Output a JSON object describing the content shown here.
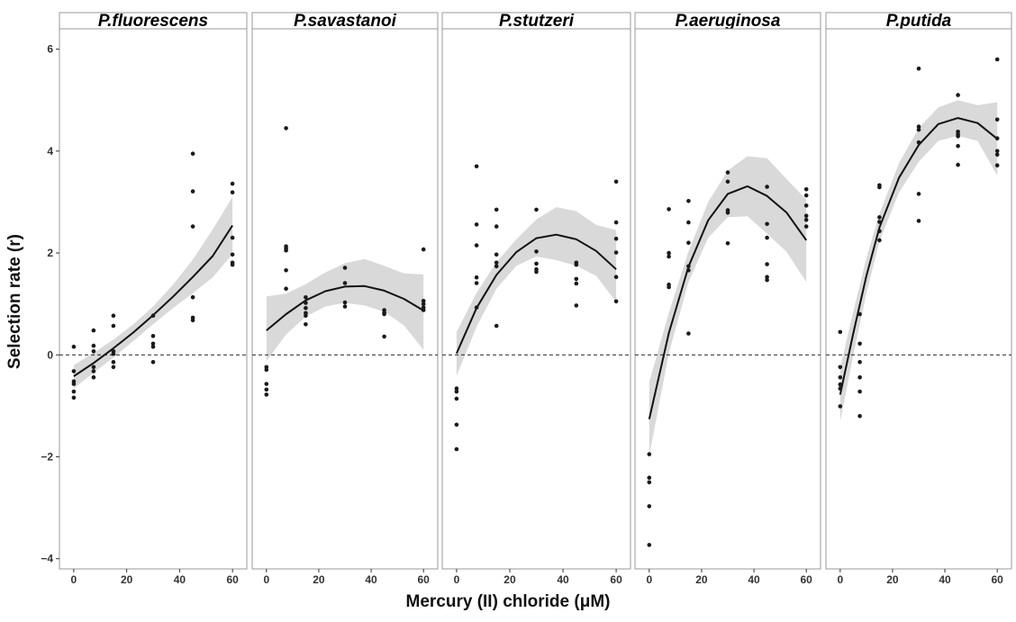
{
  "figure": {
    "ylabel": "Selection rate (r)",
    "xlabel": "Mercury (II) chloride (μM)"
  },
  "chart_data": {
    "type": "scatter",
    "layout": "faceted panels, shared y axis",
    "xlim": [
      -2,
      62
    ],
    "ylim": [
      -4.2,
      6.4
    ],
    "x_ticks": [
      0,
      20,
      40,
      60
    ],
    "y_ticks": [
      -4,
      -2,
      0,
      2,
      4,
      6
    ],
    "y_tick_labels": [
      "−4",
      "−2",
      "0",
      "2",
      "4",
      "6"
    ],
    "reference_line": {
      "y": 0,
      "style": "dashed"
    },
    "fit": "quadratic curve with shaded confidence band",
    "colors": {
      "points": "#1a1a1a",
      "fit_line": "#111111",
      "band": "#d9d9d9",
      "strip": "#ffffff",
      "border": "#9a9a9a"
    },
    "panels": [
      {
        "title": "P.fluorescens",
        "points": [
          [
            0,
            0.16
          ],
          [
            0,
            -0.32
          ],
          [
            0,
            -0.52
          ],
          [
            0,
            -0.57
          ],
          [
            0,
            -0.72
          ],
          [
            0,
            -0.84
          ],
          [
            7.5,
            0.48
          ],
          [
            7.5,
            0.18
          ],
          [
            7.5,
            0.07
          ],
          [
            7.5,
            -0.24
          ],
          [
            7.5,
            -0.32
          ],
          [
            7.5,
            -0.44
          ],
          [
            15,
            0.77
          ],
          [
            15,
            0.57
          ],
          [
            15,
            0.07
          ],
          [
            15,
            0.02
          ],
          [
            15,
            -0.14
          ],
          [
            15,
            -0.24
          ],
          [
            30,
            0.77
          ],
          [
            30,
            0.37
          ],
          [
            30,
            0.22
          ],
          [
            30,
            0.16
          ],
          [
            30,
            -0.14
          ],
          [
            45,
            3.95
          ],
          [
            45,
            3.21
          ],
          [
            45,
            2.52
          ],
          [
            45,
            1.13
          ],
          [
            45,
            0.73
          ],
          [
            45,
            0.68
          ],
          [
            60,
            3.36
          ],
          [
            60,
            3.19
          ],
          [
            60,
            2.3
          ],
          [
            60,
            1.97
          ],
          [
            60,
            1.81
          ],
          [
            60,
            1.77
          ]
        ],
        "fit_x": [
          0,
          7.5,
          15,
          22.5,
          30,
          37.5,
          45,
          52.5,
          60
        ],
        "fit_y": [
          -0.42,
          -0.16,
          0.13,
          0.44,
          0.78,
          1.14,
          1.53,
          1.94,
          2.54
        ],
        "band_upper": [
          -0.2,
          0.04,
          0.3,
          0.6,
          0.95,
          1.38,
          1.87,
          2.46,
          3.1
        ],
        "band_lower": [
          -0.66,
          -0.35,
          -0.05,
          0.27,
          0.6,
          0.92,
          1.21,
          1.52,
          1.98
        ]
      },
      {
        "title": "P.savastanoi",
        "points": [
          [
            0,
            -0.24
          ],
          [
            0,
            -0.29
          ],
          [
            0,
            -0.57
          ],
          [
            0,
            -0.68
          ],
          [
            0,
            -0.78
          ],
          [
            7.5,
            4.45
          ],
          [
            7.5,
            2.13
          ],
          [
            7.5,
            2.09
          ],
          [
            7.5,
            2.05
          ],
          [
            7.5,
            1.66
          ],
          [
            7.5,
            1.3
          ],
          [
            15,
            1.13
          ],
          [
            15,
            1.02
          ],
          [
            15,
            0.92
          ],
          [
            15,
            0.82
          ],
          [
            15,
            0.77
          ],
          [
            15,
            0.6
          ],
          [
            30,
            1.71
          ],
          [
            30,
            1.41
          ],
          [
            30,
            1.03
          ],
          [
            30,
            0.95
          ],
          [
            45,
            0.88
          ],
          [
            45,
            0.83
          ],
          [
            45,
            0.8
          ],
          [
            45,
            0.36
          ],
          [
            60,
            2.07
          ],
          [
            60,
            1.06
          ],
          [
            60,
            1.0
          ],
          [
            60,
            0.93
          ],
          [
            60,
            0.88
          ]
        ],
        "fit_x": [
          0,
          7.5,
          15,
          22.5,
          30,
          37.5,
          45,
          52.5,
          60
        ],
        "fit_y": [
          0.48,
          0.8,
          1.07,
          1.25,
          1.34,
          1.35,
          1.26,
          1.1,
          0.87
        ],
        "band_upper": [
          1.15,
          1.2,
          1.39,
          1.62,
          1.8,
          1.88,
          1.75,
          1.6,
          1.58
        ],
        "band_lower": [
          -0.12,
          0.4,
          0.75,
          0.95,
          1.02,
          0.97,
          0.85,
          0.58,
          0.1
        ]
      },
      {
        "title": "P.stutzeri",
        "points": [
          [
            0,
            -0.66
          ],
          [
            0,
            -0.72
          ],
          [
            0,
            -0.86
          ],
          [
            0,
            -1.37
          ],
          [
            0,
            -1.85
          ],
          [
            7.5,
            3.7
          ],
          [
            7.5,
            2.56
          ],
          [
            7.5,
            2.15
          ],
          [
            7.5,
            1.52
          ],
          [
            7.5,
            1.41
          ],
          [
            7.5,
            0.93
          ],
          [
            15,
            2.85
          ],
          [
            15,
            2.52
          ],
          [
            15,
            1.97
          ],
          [
            15,
            1.81
          ],
          [
            15,
            1.74
          ],
          [
            15,
            0.57
          ],
          [
            30,
            2.85
          ],
          [
            30,
            2.03
          ],
          [
            30,
            1.79
          ],
          [
            30,
            1.68
          ],
          [
            30,
            1.63
          ],
          [
            45,
            1.81
          ],
          [
            45,
            1.77
          ],
          [
            45,
            1.49
          ],
          [
            45,
            1.4
          ],
          [
            45,
            0.97
          ],
          [
            60,
            3.4
          ],
          [
            60,
            2.6
          ],
          [
            60,
            2.28
          ],
          [
            60,
            2.01
          ],
          [
            60,
            1.53
          ],
          [
            60,
            1.05
          ]
        ],
        "fit_x": [
          0,
          7.5,
          15,
          22.5,
          30,
          37.5,
          45,
          52.5,
          60
        ],
        "fit_y": [
          0.03,
          0.92,
          1.57,
          2.02,
          2.29,
          2.36,
          2.27,
          2.04,
          1.68
        ],
        "band_upper": [
          0.45,
          1.22,
          1.82,
          2.27,
          2.66,
          2.9,
          2.82,
          2.55,
          2.45
        ],
        "band_lower": [
          -0.41,
          0.55,
          1.3,
          1.75,
          1.93,
          1.86,
          1.75,
          1.55,
          1.04
        ]
      },
      {
        "title": "P.aeruginosa",
        "points": [
          [
            0,
            -1.95
          ],
          [
            0,
            -2.41
          ],
          [
            0,
            -2.5
          ],
          [
            0,
            -2.97
          ],
          [
            0,
            -3.73
          ],
          [
            7.5,
            2.86
          ],
          [
            7.5,
            2.0
          ],
          [
            7.5,
            1.93
          ],
          [
            7.5,
            1.38
          ],
          [
            7.5,
            1.33
          ],
          [
            15,
            3.02
          ],
          [
            15,
            2.6
          ],
          [
            15,
            2.2
          ],
          [
            15,
            1.74
          ],
          [
            15,
            1.66
          ],
          [
            15,
            0.42
          ],
          [
            30,
            3.58
          ],
          [
            30,
            3.4
          ],
          [
            30,
            2.84
          ],
          [
            30,
            2.79
          ],
          [
            30,
            2.19
          ],
          [
            45,
            3.3
          ],
          [
            45,
            2.57
          ],
          [
            45,
            2.3
          ],
          [
            45,
            1.78
          ],
          [
            45,
            1.53
          ],
          [
            45,
            1.47
          ],
          [
            60,
            3.25
          ],
          [
            60,
            3.13
          ],
          [
            60,
            2.93
          ],
          [
            60,
            2.73
          ],
          [
            60,
            2.65
          ],
          [
            60,
            2.52
          ]
        ],
        "fit_x": [
          0,
          7.5,
          15,
          22.5,
          30,
          37.5,
          45,
          52.5,
          60
        ],
        "fit_y": [
          -1.26,
          0.43,
          1.73,
          2.64,
          3.16,
          3.31,
          3.12,
          2.79,
          2.25
        ],
        "band_upper": [
          -0.54,
          0.83,
          2.03,
          3.0,
          3.62,
          3.9,
          3.86,
          3.45,
          3.05
        ],
        "band_lower": [
          -1.98,
          0.03,
          1.43,
          2.3,
          2.7,
          2.72,
          2.38,
          2.02,
          1.43
        ]
      },
      {
        "title": "P.putida",
        "points": [
          [
            0,
            0.45
          ],
          [
            0,
            -0.24
          ],
          [
            0,
            -0.44
          ],
          [
            0,
            -0.58
          ],
          [
            0,
            -0.66
          ],
          [
            0,
            -1.01
          ],
          [
            7.5,
            0.8
          ],
          [
            7.5,
            0.22
          ],
          [
            7.5,
            -0.14
          ],
          [
            7.5,
            -0.44
          ],
          [
            7.5,
            -0.72
          ],
          [
            7.5,
            -1.2
          ],
          [
            15,
            3.33
          ],
          [
            15,
            3.29
          ],
          [
            15,
            2.7
          ],
          [
            15,
            2.61
          ],
          [
            15,
            2.43
          ],
          [
            15,
            2.25
          ],
          [
            30,
            5.62
          ],
          [
            30,
            4.48
          ],
          [
            30,
            4.42
          ],
          [
            30,
            4.17
          ],
          [
            30,
            3.16
          ],
          [
            30,
            2.63
          ],
          [
            45,
            5.1
          ],
          [
            45,
            4.38
          ],
          [
            45,
            4.33
          ],
          [
            45,
            4.29
          ],
          [
            45,
            4.1
          ],
          [
            45,
            3.73
          ],
          [
            60,
            5.8
          ],
          [
            60,
            4.62
          ],
          [
            60,
            4.25
          ],
          [
            60,
            4.0
          ],
          [
            60,
            3.93
          ],
          [
            60,
            3.72
          ]
        ],
        "fit_x": [
          0,
          5,
          10,
          15,
          22.5,
          30,
          37.5,
          45,
          52.5,
          60
        ],
        "fit_y": [
          -0.78,
          0.42,
          1.55,
          2.5,
          3.48,
          4.12,
          4.53,
          4.65,
          4.55,
          4.24
        ],
        "band_upper": [
          -0.25,
          0.85,
          1.9,
          2.77,
          3.77,
          4.45,
          4.86,
          5.0,
          4.9,
          4.96
        ],
        "band_lower": [
          -1.31,
          -0.01,
          1.2,
          2.23,
          3.19,
          3.79,
          4.2,
          4.3,
          4.2,
          3.52
        ]
      }
    ]
  }
}
